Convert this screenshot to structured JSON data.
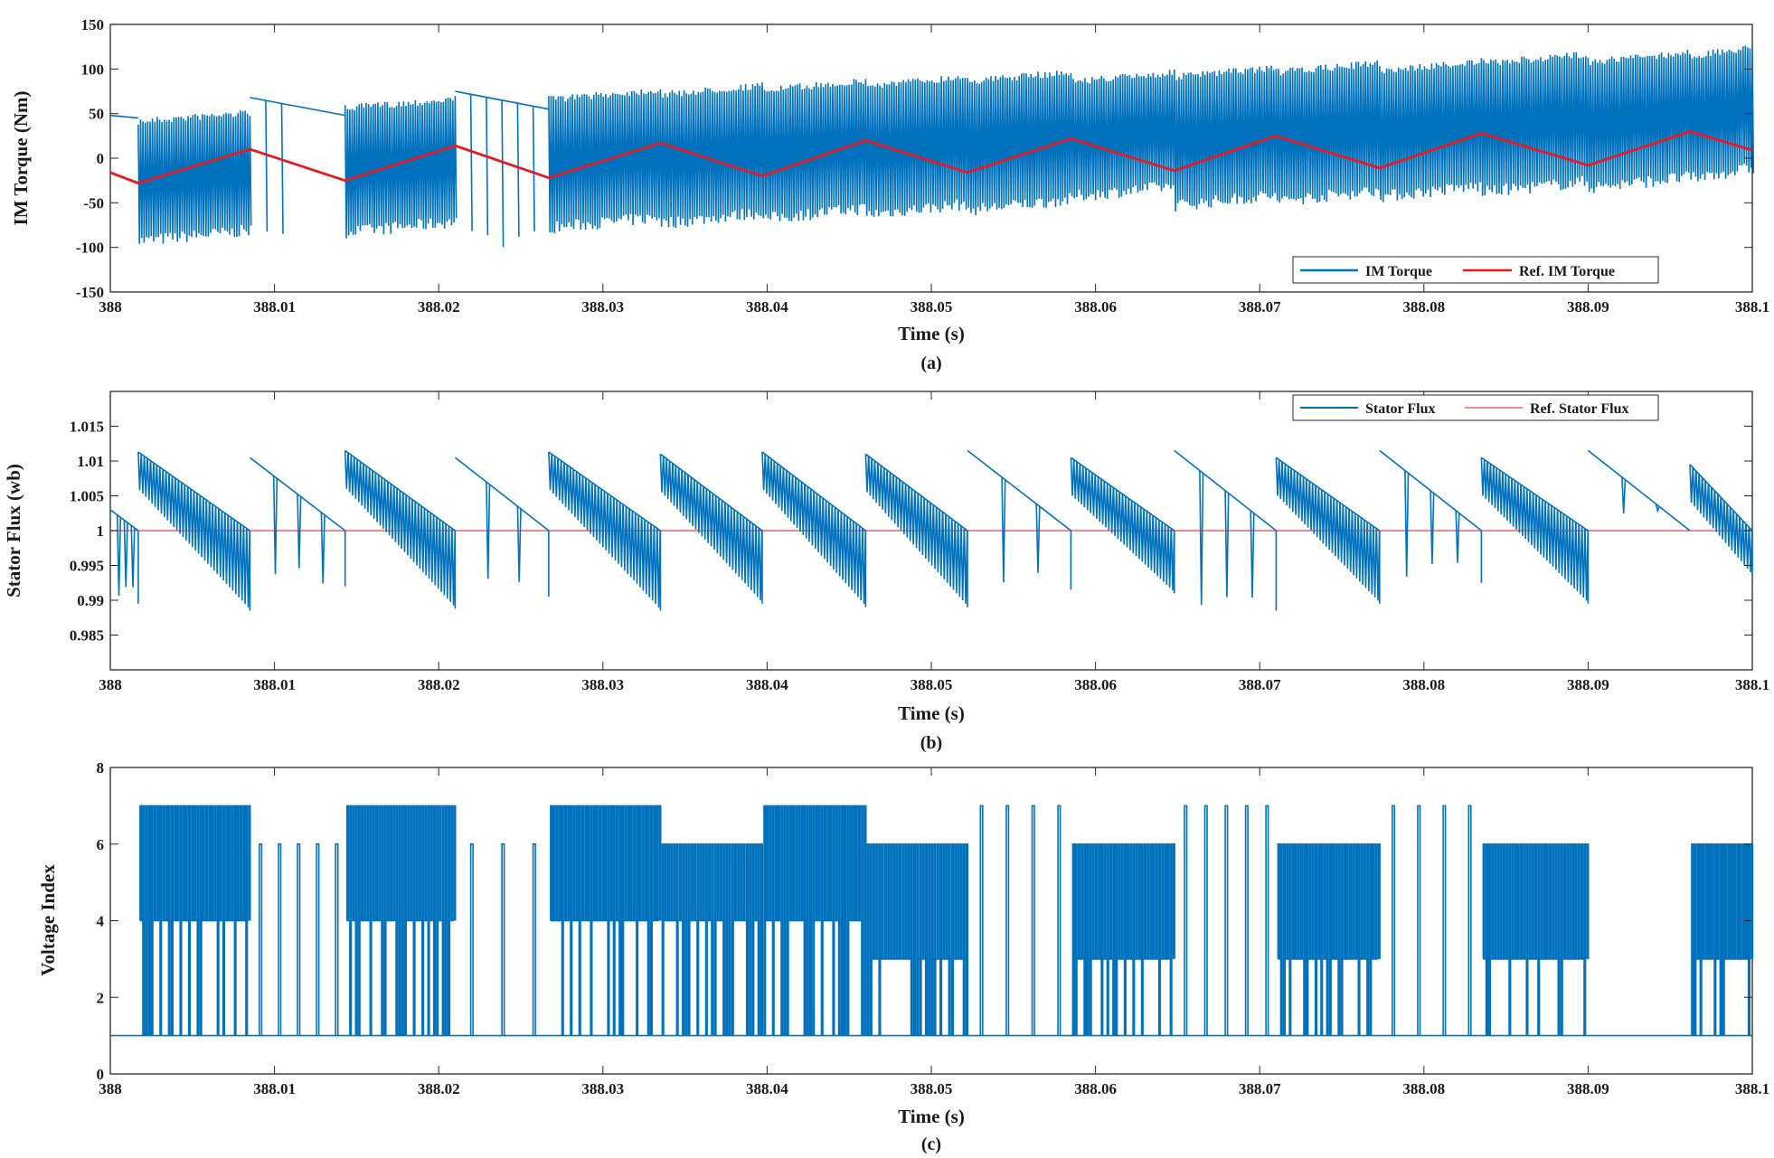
{
  "chart_data": [
    {
      "type": "line",
      "caption": "(a)",
      "xlabel": "Time (s)",
      "ylabel": "IM Torque (Nm)",
      "xlim": [
        388,
        388.1
      ],
      "ylim": [
        -150,
        150
      ],
      "xticks": [
        388,
        388.01,
        388.02,
        388.03,
        388.04,
        388.05,
        388.06,
        388.07,
        388.08,
        388.09,
        388.1
      ],
      "xtick_labels": [
        "388",
        "388.01",
        "388.02",
        "388.03",
        "388.04",
        "388.05",
        "388.06",
        "388.07",
        "388.08",
        "388.09",
        "388.1"
      ],
      "yticks": [
        -150,
        -100,
        -50,
        0,
        50,
        100,
        150
      ],
      "ytick_labels": [
        "-150",
        "-100",
        "-50",
        "0",
        "50",
        "100",
        "150"
      ],
      "legend_position": "bottom-right",
      "series": [
        {
          "name": "IM Torque",
          "color": "#0072BD",
          "style": "band",
          "segments": [
            {
              "x0": 388.0,
              "x1": 388.0017,
              "low": 45,
              "high": 48
            },
            {
              "x0": 388.0017,
              "x1": 388.0085,
              "low": -110,
              "high": 55
            },
            {
              "x0": 388.0085,
              "x1": 388.0143,
              "low": 48,
              "high": 68
            },
            {
              "x0": 388.0143,
              "x1": 388.021,
              "low": -100,
              "high": 70
            },
            {
              "x0": 388.021,
              "x1": 388.0267,
              "low": 55,
              "high": 75
            },
            {
              "x0": 388.0267,
              "x1": 388.0335,
              "low": -95,
              "high": 80
            },
            {
              "x0": 388.0335,
              "x1": 388.0397,
              "low": -90,
              "high": 85
            },
            {
              "x0": 388.0397,
              "x1": 388.046,
              "low": -85,
              "high": 90
            },
            {
              "x0": 388.046,
              "x1": 388.0522,
              "low": -80,
              "high": 95
            },
            {
              "x0": 388.0522,
              "x1": 388.0585,
              "low": -75,
              "high": 100
            },
            {
              "x0": 388.0585,
              "x1": 388.0648,
              "low": -60,
              "high": 100
            },
            {
              "x0": 388.0648,
              "x1": 388.071,
              "low": -70,
              "high": 105
            },
            {
              "x0": 388.071,
              "x1": 388.0773,
              "low": -65,
              "high": 110
            },
            {
              "x0": 388.0773,
              "x1": 388.0835,
              "low": -60,
              "high": 112
            },
            {
              "x0": 388.0835,
              "x1": 388.09,
              "low": -55,
              "high": 120
            },
            {
              "x0": 388.09,
              "x1": 388.0962,
              "low": -50,
              "high": 122
            },
            {
              "x0": 388.0962,
              "x1": 388.1,
              "low": -40,
              "high": 128
            }
          ]
        },
        {
          "name": "Ref. IM Torque",
          "color": "#E8191E",
          "style": "line",
          "x": [
            388.0,
            388.0017,
            388.0085,
            388.0143,
            388.021,
            388.0267,
            388.0335,
            388.0397,
            388.046,
            388.0522,
            388.0585,
            388.0648,
            388.071,
            388.0773,
            388.0835,
            388.09,
            388.0962,
            388.1
          ],
          "y": [
            -16,
            -28,
            10,
            -25,
            14,
            -22,
            17,
            -20,
            20,
            -16,
            22,
            -14,
            25,
            -11,
            28,
            -8,
            30,
            9
          ]
        }
      ]
    },
    {
      "type": "line",
      "caption": "(b)",
      "xlabel": "Time (s)",
      "ylabel": "Stator Flux (wb)",
      "xlim": [
        388,
        388.1
      ],
      "ylim": [
        0.98,
        1.02
      ],
      "xticks": [
        388,
        388.01,
        388.02,
        388.03,
        388.04,
        388.05,
        388.06,
        388.07,
        388.08,
        388.09,
        388.1
      ],
      "xtick_labels": [
        "388",
        "388.01",
        "388.02",
        "388.03",
        "388.04",
        "388.05",
        "388.06",
        "388.07",
        "388.08",
        "388.09",
        "388.1"
      ],
      "yticks": [
        0.985,
        0.99,
        0.995,
        1.0,
        1.005,
        1.01,
        1.015
      ],
      "ytick_labels": [
        "0.985",
        "0.99",
        "0.995",
        "1",
        "1.005",
        "1.01",
        "1.015"
      ],
      "legend_position": "top-right",
      "series": [
        {
          "name": "Stator Flux",
          "color": "#0072BD",
          "style": "sawtooth",
          "segments": [
            {
              "x0": 388.0,
              "x1": 388.0017,
              "start": 1.003,
              "end": 1.0,
              "dip": 0.9895,
              "dense": false
            },
            {
              "x0": 388.0017,
              "x1": 388.0085,
              "start": 1.0113,
              "end": 1.0,
              "dip": 0.9885,
              "dense": true
            },
            {
              "x0": 388.0085,
              "x1": 388.0143,
              "start": 1.0105,
              "end": 1.0,
              "dip": 0.992,
              "dense": false
            },
            {
              "x0": 388.0143,
              "x1": 388.021,
              "start": 1.0115,
              "end": 1.0,
              "dip": 0.9888,
              "dense": true
            },
            {
              "x0": 388.021,
              "x1": 388.0267,
              "start": 1.0105,
              "end": 1.0,
              "dip": 0.9905,
              "dense": false
            },
            {
              "x0": 388.0267,
              "x1": 388.0335,
              "start": 1.0113,
              "end": 1.0,
              "dip": 0.9885,
              "dense": true
            },
            {
              "x0": 388.0335,
              "x1": 388.0397,
              "start": 1.011,
              "end": 1.0,
              "dip": 0.9895,
              "dense": true
            },
            {
              "x0": 388.0397,
              "x1": 388.046,
              "start": 1.0113,
              "end": 1.0,
              "dip": 0.989,
              "dense": true
            },
            {
              "x0": 388.046,
              "x1": 388.0522,
              "start": 1.011,
              "end": 1.0,
              "dip": 0.989,
              "dense": true
            },
            {
              "x0": 388.0522,
              "x1": 388.0585,
              "start": 1.0115,
              "end": 1.0,
              "dip": 0.9915,
              "dense": false
            },
            {
              "x0": 388.0585,
              "x1": 388.0648,
              "start": 1.0105,
              "end": 1.0,
              "dip": 0.991,
              "dense": true
            },
            {
              "x0": 388.0648,
              "x1": 388.071,
              "start": 1.0115,
              "end": 1.0,
              "dip": 0.9885,
              "dense": false
            },
            {
              "x0": 388.071,
              "x1": 388.0773,
              "start": 1.0105,
              "end": 1.0,
              "dip": 0.9895,
              "dense": true
            },
            {
              "x0": 388.0773,
              "x1": 388.0835,
              "start": 1.0115,
              "end": 1.0,
              "dip": 0.9925,
              "dense": false
            },
            {
              "x0": 388.0835,
              "x1": 388.09,
              "start": 1.0105,
              "end": 1.0,
              "dip": 0.9895,
              "dense": true
            },
            {
              "x0": 388.09,
              "x1": 388.0962,
              "start": 1.0115,
              "end": 1.0,
              "dip": 1.0,
              "dense": false
            },
            {
              "x0": 388.0962,
              "x1": 388.1,
              "start": 1.0095,
              "end": 1.0,
              "dip": 0.9935,
              "dense": true
            }
          ]
        },
        {
          "name": "Ref. Stator Flux",
          "color": "#F2606A",
          "style": "line",
          "x": [
            388.0,
            388.1
          ],
          "y": [
            1.0,
            1.0
          ]
        }
      ]
    },
    {
      "type": "line",
      "caption": "(c)",
      "xlabel": "Time (s)",
      "ylabel": "Voltage Index",
      "xlim": [
        388,
        388.1
      ],
      "ylim": [
        0,
        8
      ],
      "xticks": [
        388,
        388.01,
        388.02,
        388.03,
        388.04,
        388.05,
        388.06,
        388.07,
        388.08,
        388.09,
        388.1
      ],
      "xtick_labels": [
        "388",
        "388.01",
        "388.02",
        "388.03",
        "388.04",
        "388.05",
        "388.06",
        "388.07",
        "388.08",
        "388.09",
        "388.1"
      ],
      "yticks": [
        0,
        2,
        4,
        6,
        8
      ],
      "ytick_labels": [
        "0",
        "2",
        "4",
        "6",
        "8"
      ],
      "series": [
        {
          "name": "Voltage Index",
          "color": "#0072BD",
          "style": "switching",
          "segments": [
            {
              "x0": 388.0,
              "x1": 388.0017,
              "level": 1,
              "top": 1,
              "mid": 1,
              "dense": false
            },
            {
              "x0": 388.0017,
              "x1": 388.0085,
              "level": 1,
              "top": 7,
              "mid": 4,
              "dense": true
            },
            {
              "x0": 388.0085,
              "x1": 388.0143,
              "level": 1,
              "top": 6,
              "mid": 1,
              "dense": false
            },
            {
              "x0": 388.0143,
              "x1": 388.021,
              "level": 1,
              "top": 7,
              "mid": 4,
              "dense": true
            },
            {
              "x0": 388.021,
              "x1": 388.0267,
              "level": 1,
              "top": 6,
              "mid": 1,
              "dense": false
            },
            {
              "x0": 388.0267,
              "x1": 388.0335,
              "level": 1,
              "top": 7,
              "mid": 4,
              "dense": true
            },
            {
              "x0": 388.0335,
              "x1": 388.0397,
              "level": 1,
              "top": 6,
              "mid": 4,
              "dense": true
            },
            {
              "x0": 388.0397,
              "x1": 388.046,
              "level": 1,
              "top": 7,
              "mid": 4,
              "dense": true
            },
            {
              "x0": 388.046,
              "x1": 388.0522,
              "level": 1,
              "top": 6,
              "mid": 3,
              "dense": true
            },
            {
              "x0": 388.0522,
              "x1": 388.0585,
              "level": 1,
              "top": 7,
              "mid": 1,
              "dense": false
            },
            {
              "x0": 388.0585,
              "x1": 388.0648,
              "level": 1,
              "top": 6,
              "mid": 3,
              "dense": true
            },
            {
              "x0": 388.0648,
              "x1": 388.071,
              "level": 1,
              "top": 7,
              "mid": 1,
              "dense": false
            },
            {
              "x0": 388.071,
              "x1": 388.0773,
              "level": 1,
              "top": 6,
              "mid": 3,
              "dense": true
            },
            {
              "x0": 388.0773,
              "x1": 388.0835,
              "level": 1,
              "top": 7,
              "mid": 1,
              "dense": false
            },
            {
              "x0": 388.0835,
              "x1": 388.09,
              "level": 1,
              "top": 6,
              "mid": 3,
              "dense": true
            },
            {
              "x0": 388.09,
              "x1": 388.0962,
              "level": 1,
              "top": 1,
              "mid": 1,
              "dense": false
            },
            {
              "x0": 388.0962,
              "x1": 388.1,
              "level": 1,
              "top": 6,
              "mid": 3,
              "dense": true
            }
          ]
        }
      ]
    }
  ]
}
